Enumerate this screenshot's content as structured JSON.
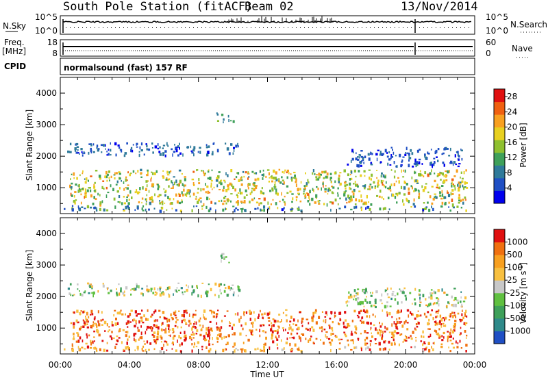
{
  "header": {
    "station": "South Pole Station (fitACF)",
    "beam": "Beam 02",
    "date": "13/Nov/2014"
  },
  "summary": {
    "nsky_label": "N.Sky",
    "nsearch_label": "N.Search",
    "freq_label_1": "Freq.",
    "freq_label_2": "[MHz]",
    "nave_label": "Nave",
    "cpid_label": "CPID",
    "left_top_ticks": [
      "10^5",
      "10^0"
    ],
    "right_top_ticks": [
      "10^5",
      "10^0"
    ],
    "freq_ticks": [
      "18",
      "8"
    ],
    "nave_ticks": [
      "60",
      "0"
    ],
    "cpid_text": "normalsound (fast) 157 RF"
  },
  "chart_data": [
    {
      "type": "heatmap",
      "name": "power-panel",
      "ylabel": "Slant Range [km]",
      "xlabel": "Time UT",
      "xlim": [
        "00:00",
        "24:00"
      ],
      "ylim": [
        180,
        4500
      ],
      "x_ticks": [
        "00:00",
        "04:00",
        "08:00",
        "12:00",
        "16:00",
        "20:00",
        "00:00"
      ],
      "y_ticks": [
        "1000",
        "2000",
        "3000",
        "4000"
      ],
      "colorbar": {
        "label": "Power [dB]",
        "ticks": [
          "4",
          "8",
          "12",
          "16",
          "20",
          "24",
          "28"
        ],
        "range": [
          0,
          30
        ],
        "colors": [
          "#0000ee",
          "#1f4fc4",
          "#2f7a9a",
          "#3fa05a",
          "#8fc030",
          "#e8d020",
          "#f8a020",
          "#f06010",
          "#e01010"
        ]
      },
      "features": [
        {
          "t0": 0.2,
          "t1": 23.9,
          "r0": 300,
          "r1": 450,
          "level": 0.35
        },
        {
          "t0": 0.3,
          "t1": 10.5,
          "r0": 2050,
          "r1": 2450,
          "level": 0.15
        },
        {
          "t0": 16.5,
          "t1": 23.5,
          "r0": 1700,
          "r1": 2300,
          "level": 0.15
        },
        {
          "t0": 0.5,
          "t1": 23.5,
          "r0": 500,
          "r1": 1600,
          "level": 0.55
        },
        {
          "t0": 9.0,
          "t1": 10.0,
          "r0": 3100,
          "r1": 3400,
          "level": 0.3
        }
      ]
    },
    {
      "type": "heatmap",
      "name": "velocity-panel",
      "ylabel": "Slant Range [km]",
      "xlabel": "Time UT",
      "xlim": [
        "00:00",
        "24:00"
      ],
      "ylim": [
        180,
        4500
      ],
      "x_ticks": [
        "00:00",
        "04:00",
        "08:00",
        "12:00",
        "16:00",
        "20:00",
        "00:00"
      ],
      "y_ticks": [
        "1000",
        "2000",
        "3000",
        "4000"
      ],
      "colorbar": {
        "label": "Velocity [m s-1]",
        "ticks": [
          "1000",
          "500",
          "100",
          "25",
          "-25",
          "-100",
          "-500",
          "-1000"
        ],
        "colors": [
          "#1f4fc4",
          "#2f8a8a",
          "#3fa05a",
          "#60c040",
          "#c8c8c8",
          "#f8c040",
          "#f8a020",
          "#f07010",
          "#e01010"
        ]
      },
      "features": [
        {
          "t0": 0.2,
          "t1": 23.9,
          "r0": 300,
          "r1": 450,
          "level": 0.75
        },
        {
          "t0": 0.3,
          "t1": 10.5,
          "r0": 2050,
          "r1": 2450,
          "level": 0.45
        },
        {
          "t0": 16.5,
          "t1": 23.5,
          "r0": 1700,
          "r1": 2300,
          "level": 0.45
        },
        {
          "t0": 0.5,
          "t1": 23.5,
          "r0": 500,
          "r1": 1600,
          "level": 0.82
        },
        {
          "t0": 9.0,
          "t1": 10.0,
          "r0": 3100,
          "r1": 3400,
          "level": 0.3
        }
      ]
    }
  ],
  "time_label": "Time UT"
}
